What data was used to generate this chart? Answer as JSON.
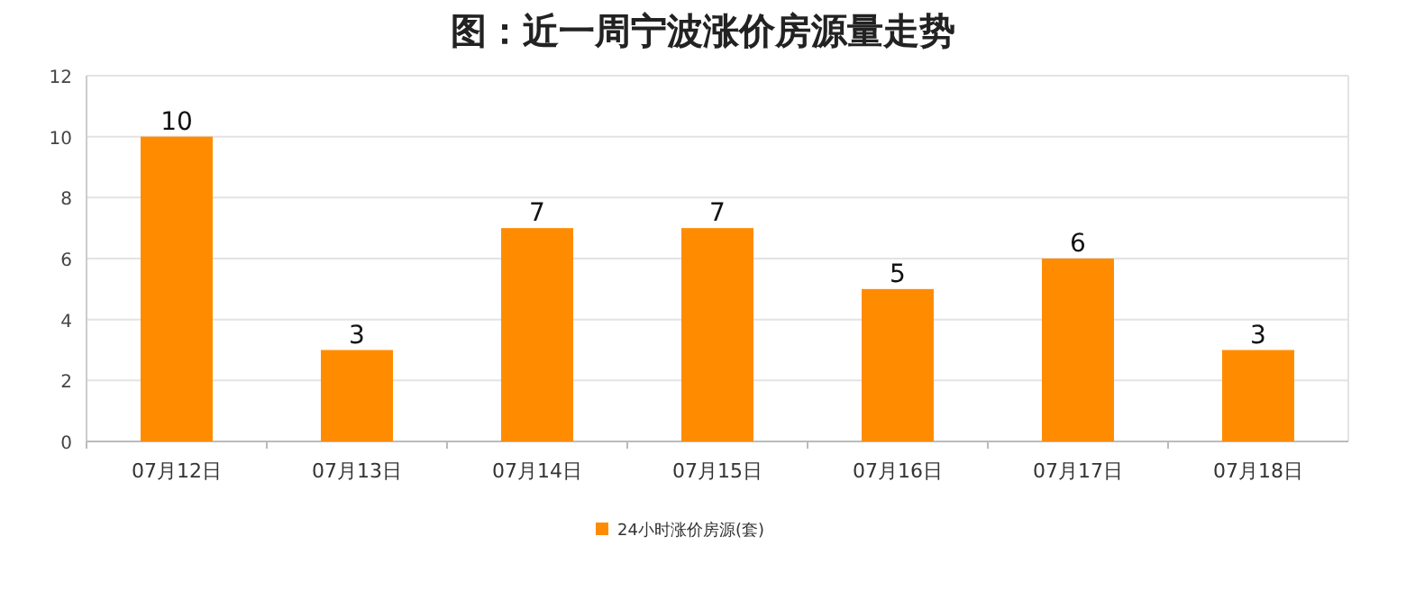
{
  "chart_data": {
    "type": "bar",
    "title": "图：近一周宁波涨价房源量走势",
    "categories": [
      "07月12日",
      "07月13日",
      "07月14日",
      "07月15日",
      "07月16日",
      "07月17日",
      "07月18日"
    ],
    "series": [
      {
        "name": "24小时涨价房源(套)",
        "color": "#ff8c00",
        "values": [
          10,
          3,
          7,
          7,
          5,
          6,
          3
        ]
      }
    ],
    "ylim": [
      0,
      12
    ],
    "yticks": [
      0,
      2,
      4,
      6,
      8,
      10,
      12
    ],
    "grid": "y",
    "legend": "bottom",
    "data_labels": true
  }
}
